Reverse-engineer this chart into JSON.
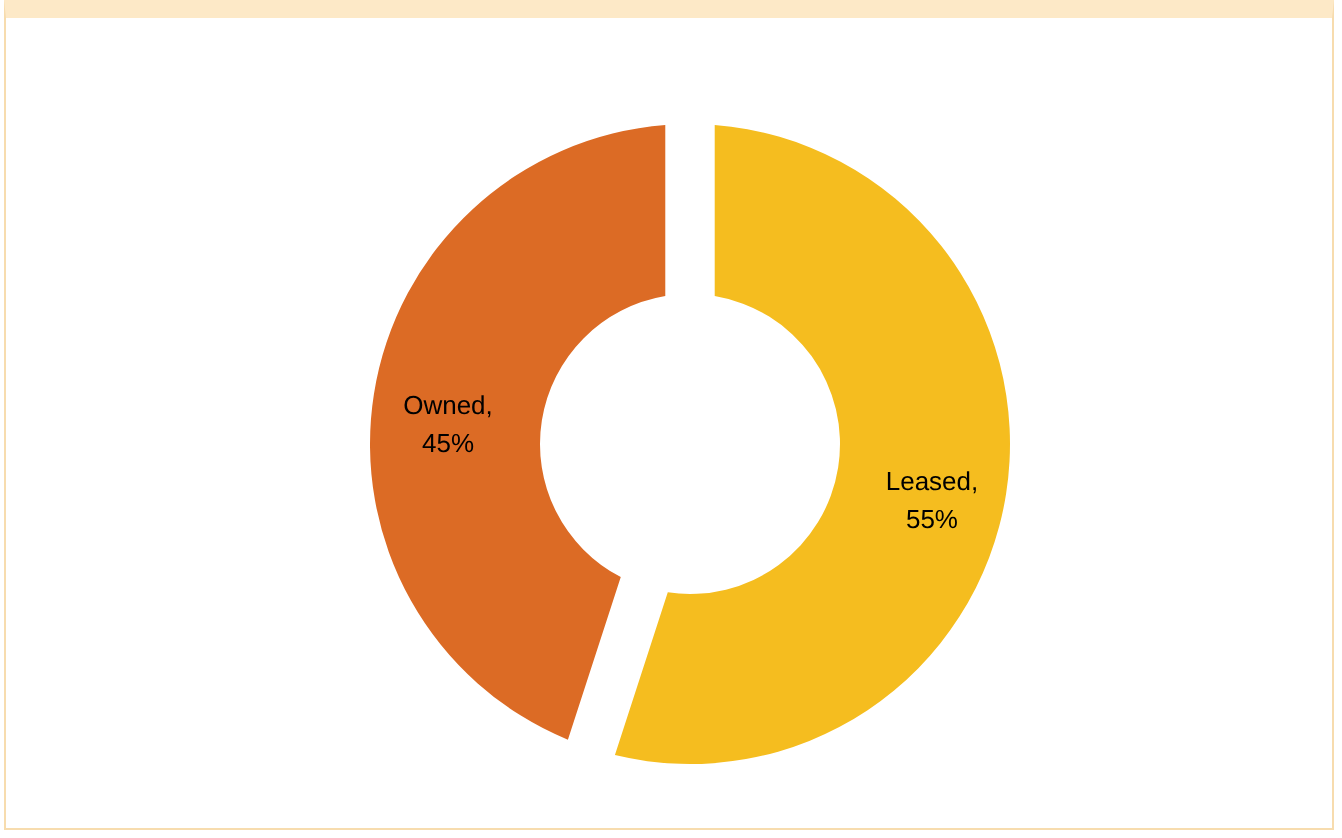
{
  "chart_data": {
    "type": "donut",
    "categories": [
      "Leased",
      "Owned"
    ],
    "values": [
      55,
      45
    ],
    "colors": [
      "#f5bd1f",
      "#dc6b25"
    ],
    "value_labels": [
      ", 55%",
      ", 45%"
    ]
  }
}
